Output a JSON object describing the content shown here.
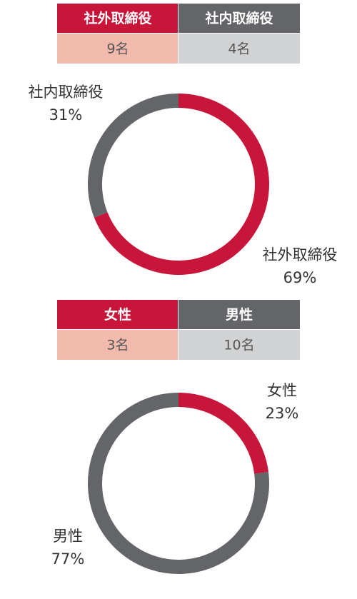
{
  "chart_data": [
    {
      "type": "donut",
      "categories": [
        "社外取締役",
        "社内取締役"
      ],
      "values": [
        69,
        31
      ],
      "value_labels": [
        "69%",
        "31%"
      ],
      "colors": [
        "#c8163a",
        "#646569"
      ],
      "count_labels": [
        "9名",
        "4名"
      ]
    },
    {
      "type": "donut",
      "categories": [
        "女性",
        "男性"
      ],
      "values": [
        23,
        77
      ],
      "value_labels": [
        "23%",
        "77%"
      ],
      "colors": [
        "#c8163a",
        "#646569"
      ],
      "count_labels": [
        "3名",
        "10名"
      ]
    }
  ]
}
